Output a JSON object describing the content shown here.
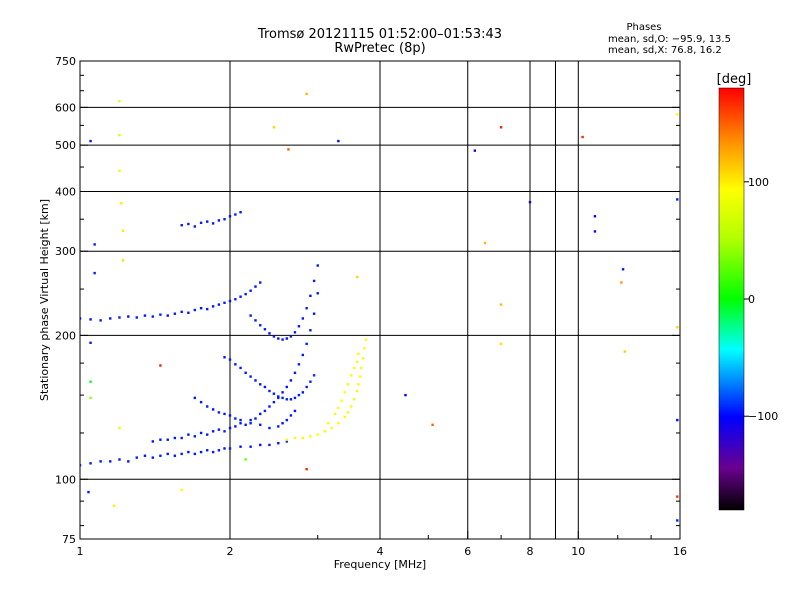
{
  "title_line1": "Tromsø 20121115 01:52:00–01:53:43",
  "title_line2": "RwPretec (8p)",
  "stats": {
    "heading": "Phases",
    "line_o": "mean, sd,O: −95.9, 13.5",
    "line_x": "mean, sd,X:  76.8, 16.2"
  },
  "colorbar": {
    "label": "[deg]",
    "ticks": [
      {
        "value": 100,
        "label": "100"
      },
      {
        "value": 0,
        "label": "0"
      },
      {
        "value": -100,
        "label": "−100"
      }
    ],
    "range": [
      -180,
      180
    ]
  },
  "chart_data": {
    "type": "scatter",
    "title": "Tromsø 20121115 01:52:00–01:53:43",
    "subtitle": "RwPretec (8p)",
    "xlabel": "Frequency [MHz]",
    "ylabel": "Stationary phase Virtual Height [km]",
    "x_scale": "log",
    "y_scale": "log",
    "xlim": [
      1,
      16
    ],
    "ylim": [
      75,
      750
    ],
    "x_ticks": [
      {
        "value": 1,
        "label": "1"
      },
      {
        "value": 2,
        "label": "2"
      },
      {
        "value": 4,
        "label": "4"
      },
      {
        "value": 6,
        "label": "6"
      },
      {
        "value": 8,
        "label": "8"
      },
      {
        "value": 10,
        "label": "10"
      },
      {
        "value": 16,
        "label": "16"
      }
    ],
    "x_grid": [
      1,
      2,
      4,
      6,
      8,
      9,
      10,
      16
    ],
    "y_ticks": [
      {
        "value": 75,
        "label": "75"
      },
      {
        "value": 100,
        "label": "100"
      },
      {
        "value": 200,
        "label": "200"
      },
      {
        "value": 300,
        "label": "300"
      },
      {
        "value": 400,
        "label": "400"
      },
      {
        "value": 500,
        "label": "500"
      },
      {
        "value": 600,
        "label": "600"
      },
      {
        "value": 750,
        "label": "750"
      }
    ],
    "y_grid": [
      100,
      200,
      300,
      400,
      500,
      600
    ],
    "grid": true,
    "color_encoding": "phase [deg]",
    "series": [
      {
        "points": [
          [
            1.0,
            107,
            -95
          ],
          [
            1.05,
            108,
            -95
          ],
          [
            1.1,
            109,
            -96
          ],
          [
            1.15,
            109,
            -94
          ],
          [
            1.2,
            110,
            -95
          ],
          [
            1.25,
            109,
            -97
          ],
          [
            1.3,
            111,
            -95
          ],
          [
            1.35,
            112,
            -96
          ],
          [
            1.4,
            111,
            -95
          ],
          [
            1.45,
            112,
            -94
          ],
          [
            1.5,
            113,
            -96
          ],
          [
            1.55,
            112,
            -95
          ],
          [
            1.6,
            113,
            -95
          ],
          [
            1.65,
            114,
            -97
          ],
          [
            1.7,
            113,
            -95
          ],
          [
            1.75,
            114,
            -96
          ],
          [
            1.8,
            115,
            -95
          ],
          [
            1.85,
            114,
            -95
          ],
          [
            1.9,
            115,
            -94
          ],
          [
            1.95,
            116,
            -96
          ],
          [
            2.0,
            116,
            -95
          ],
          [
            2.1,
            117,
            -96
          ],
          [
            2.2,
            117,
            -95
          ],
          [
            2.3,
            118,
            -97
          ],
          [
            2.4,
            118,
            -95
          ],
          [
            2.5,
            119,
            -96
          ],
          [
            2.6,
            120,
            -92
          ]
        ]
      },
      {
        "points": [
          [
            1.4,
            120,
            -97
          ],
          [
            1.45,
            121,
            -95
          ],
          [
            1.5,
            121,
            -96
          ],
          [
            1.55,
            122,
            -95
          ],
          [
            1.6,
            122,
            -94
          ],
          [
            1.65,
            124,
            -96
          ],
          [
            1.7,
            123,
            -95
          ],
          [
            1.75,
            125,
            -97
          ],
          [
            1.8,
            124,
            -95
          ],
          [
            1.85,
            126,
            -96
          ],
          [
            1.9,
            127,
            -95
          ],
          [
            1.95,
            126,
            -94
          ],
          [
            2.0,
            128,
            -96
          ],
          [
            2.05,
            129,
            -95
          ],
          [
            2.1,
            131,
            -95
          ],
          [
            2.15,
            130,
            -97
          ],
          [
            2.2,
            133,
            -95
          ],
          [
            2.25,
            134,
            -96
          ],
          [
            2.3,
            137,
            -95
          ],
          [
            2.35,
            139,
            -94
          ],
          [
            2.4,
            142,
            -96
          ],
          [
            2.45,
            145,
            -95
          ],
          [
            2.5,
            148,
            -95
          ],
          [
            2.55,
            152,
            -96
          ],
          [
            2.6,
            156,
            -95
          ],
          [
            2.65,
            161,
            -97
          ],
          [
            2.7,
            167,
            -95
          ],
          [
            2.75,
            174,
            -94
          ],
          [
            2.8,
            182,
            -96
          ],
          [
            2.85,
            192,
            -95
          ],
          [
            2.9,
            205,
            -95
          ],
          [
            2.95,
            222,
            -96
          ],
          [
            3.0,
            245,
            -95
          ]
        ]
      },
      {
        "points": [
          [
            1.7,
            148,
            -96
          ],
          [
            1.75,
            145,
            -95
          ],
          [
            1.8,
            142,
            -94
          ],
          [
            1.85,
            140,
            -96
          ],
          [
            1.9,
            138,
            -95
          ],
          [
            1.95,
            137,
            -95
          ],
          [
            2.0,
            136,
            -96
          ],
          [
            2.05,
            134,
            -95
          ],
          [
            2.1,
            133,
            -97
          ],
          [
            2.2,
            131,
            -95
          ],
          [
            2.3,
            130,
            -96
          ],
          [
            2.4,
            128,
            -95
          ],
          [
            2.5,
            129,
            -94
          ],
          [
            2.55,
            131,
            -96
          ],
          [
            2.6,
            133,
            -95
          ],
          [
            2.65,
            136,
            -95
          ],
          [
            2.7,
            139,
            -96
          ]
        ]
      },
      {
        "points": [
          [
            1.95,
            180,
            -96
          ],
          [
            2.0,
            178,
            -95
          ],
          [
            2.05,
            174,
            -95
          ],
          [
            2.1,
            171,
            -94
          ],
          [
            2.15,
            167,
            -96
          ],
          [
            2.2,
            164,
            -95
          ],
          [
            2.25,
            161,
            -97
          ],
          [
            2.3,
            158,
            -95
          ],
          [
            2.35,
            156,
            -96
          ],
          [
            2.4,
            153,
            -95
          ],
          [
            2.45,
            151,
            -95
          ],
          [
            2.5,
            149,
            -96
          ],
          [
            2.55,
            148,
            -95
          ],
          [
            2.6,
            147,
            -94
          ],
          [
            2.65,
            147,
            -96
          ],
          [
            2.7,
            148,
            -95
          ],
          [
            2.75,
            150,
            -95
          ],
          [
            2.8,
            152,
            -96
          ],
          [
            2.85,
            156,
            -95
          ],
          [
            2.9,
            160,
            -93
          ],
          [
            2.95,
            165,
            -90
          ]
        ]
      },
      {
        "points": [
          [
            2.2,
            220,
            -96
          ],
          [
            2.25,
            215,
            -95
          ],
          [
            2.3,
            210,
            -95
          ],
          [
            2.35,
            206,
            -94
          ],
          [
            2.4,
            202,
            -96
          ],
          [
            2.45,
            199,
            -95
          ],
          [
            2.5,
            197,
            -97
          ],
          [
            2.55,
            196,
            -95
          ],
          [
            2.6,
            197,
            -96
          ],
          [
            2.65,
            199,
            -95
          ],
          [
            2.7,
            203,
            -95
          ],
          [
            2.75,
            209,
            -96
          ],
          [
            2.8,
            217,
            -95
          ],
          [
            2.85,
            228,
            -94
          ],
          [
            2.9,
            242,
            -96
          ],
          [
            2.95,
            260,
            -95
          ],
          [
            3.0,
            280,
            -95
          ]
        ]
      },
      {
        "points": [
          [
            1.0,
            217,
            -98
          ],
          [
            1.05,
            216,
            -97
          ],
          [
            1.1,
            215,
            -95
          ],
          [
            1.15,
            217,
            -96
          ],
          [
            1.2,
            218,
            -95
          ],
          [
            1.25,
            219,
            -97
          ],
          [
            1.3,
            218,
            -95
          ],
          [
            1.35,
            220,
            -96
          ],
          [
            1.4,
            219,
            -95
          ],
          [
            1.45,
            221,
            -94
          ],
          [
            1.5,
            220,
            -96
          ],
          [
            1.55,
            222,
            -95
          ],
          [
            1.6,
            224,
            -95
          ],
          [
            1.65,
            223,
            -96
          ],
          [
            1.7,
            226,
            -95
          ],
          [
            1.75,
            228,
            -97
          ],
          [
            1.8,
            227,
            -95
          ],
          [
            1.85,
            230,
            -96
          ],
          [
            1.9,
            232,
            -95
          ],
          [
            1.95,
            234,
            -94
          ],
          [
            2.0,
            236,
            -96
          ],
          [
            2.05,
            238,
            -95
          ],
          [
            2.1,
            241,
            -95
          ],
          [
            2.15,
            244,
            -96
          ],
          [
            2.2,
            248,
            -95
          ],
          [
            2.25,
            253,
            -97
          ],
          [
            2.3,
            258,
            -95
          ]
        ]
      },
      {
        "points": [
          [
            1.6,
            340,
            -96
          ],
          [
            1.65,
            342,
            -95
          ],
          [
            1.7,
            338,
            -95
          ],
          [
            1.75,
            344,
            -94
          ],
          [
            1.8,
            346,
            -96
          ],
          [
            1.85,
            343,
            -95
          ],
          [
            1.9,
            348,
            -97
          ],
          [
            1.95,
            350,
            -95
          ],
          [
            2.0,
            355,
            -96
          ],
          [
            2.05,
            358,
            -95
          ],
          [
            2.1,
            362,
            -95
          ]
        ]
      },
      {
        "points": [
          [
            2.6,
            121,
            95
          ],
          [
            2.7,
            122,
            94
          ],
          [
            2.8,
            122,
            96
          ],
          [
            2.9,
            123,
            95
          ],
          [
            3.0,
            124,
            95
          ],
          [
            3.1,
            126,
            96
          ],
          [
            3.2,
            128,
            94
          ],
          [
            3.3,
            131,
            95
          ],
          [
            3.4,
            135,
            96
          ],
          [
            3.45,
            138,
            95
          ],
          [
            3.5,
            142,
            94
          ],
          [
            3.55,
            147,
            95
          ],
          [
            3.6,
            153,
            96
          ],
          [
            3.62,
            158,
            95
          ],
          [
            3.65,
            164,
            94
          ],
          [
            3.67,
            171,
            95
          ],
          [
            3.7,
            179,
            96
          ],
          [
            3.72,
            188,
            95
          ],
          [
            3.75,
            196,
            94
          ],
          [
            3.15,
            131,
            95
          ],
          [
            3.25,
            137,
            96
          ],
          [
            3.3,
            141,
            95
          ],
          [
            3.35,
            146,
            94
          ],
          [
            3.4,
            152,
            95
          ],
          [
            3.45,
            158,
            96
          ],
          [
            3.5,
            165,
            95
          ],
          [
            3.55,
            171,
            94
          ],
          [
            3.6,
            176,
            95
          ],
          [
            3.62,
            183,
            96
          ]
        ]
      },
      {
        "points": [
          [
            1.04,
            94,
            -95
          ],
          [
            1.05,
            510,
            -96
          ],
          [
            1.07,
            310,
            -95
          ],
          [
            1.07,
            270,
            -94
          ],
          [
            1.05,
            193,
            -96
          ],
          [
            1.2,
            618,
            80
          ],
          [
            1.2,
            525,
            75
          ],
          [
            1.2,
            442,
            90
          ],
          [
            1.21,
            378,
            100
          ],
          [
            1.22,
            331,
            100
          ],
          [
            1.22,
            287,
            105
          ],
          [
            1.17,
            88,
            100
          ],
          [
            1.2,
            128,
            85
          ],
          [
            1.05,
            160,
            -10
          ],
          [
            1.05,
            148,
            40
          ],
          [
            1.45,
            173,
            170
          ],
          [
            1.6,
            95,
            95
          ],
          [
            2.15,
            110,
            30
          ],
          [
            2.45,
            545,
            110
          ],
          [
            2.62,
            490,
            150
          ],
          [
            2.85,
            640,
            120
          ],
          [
            2.85,
            105,
            170
          ],
          [
            3.3,
            510,
            -100
          ],
          [
            3.6,
            265,
            110
          ],
          [
            4.5,
            150,
            -100
          ],
          [
            5.1,
            130,
            150
          ],
          [
            6.2,
            487,
            -115
          ],
          [
            6.5,
            312,
            120
          ],
          [
            7.0,
            545,
            170
          ],
          [
            7.0,
            232,
            120
          ],
          [
            7.0,
            192,
            105
          ],
          [
            8.0,
            380,
            -105
          ],
          [
            10.2,
            520,
            170
          ],
          [
            10.8,
            355,
            -110
          ],
          [
            10.8,
            330,
            -110
          ],
          [
            12.3,
            275,
            -95
          ],
          [
            12.2,
            258,
            130
          ],
          [
            12.4,
            185,
            110
          ],
          [
            15.8,
            580,
            90
          ],
          [
            15.8,
            385,
            -95
          ],
          [
            15.8,
            208,
            110
          ],
          [
            15.8,
            133,
            -100
          ],
          [
            15.8,
            92,
            165
          ],
          [
            15.8,
            82,
            -95
          ]
        ]
      }
    ]
  }
}
